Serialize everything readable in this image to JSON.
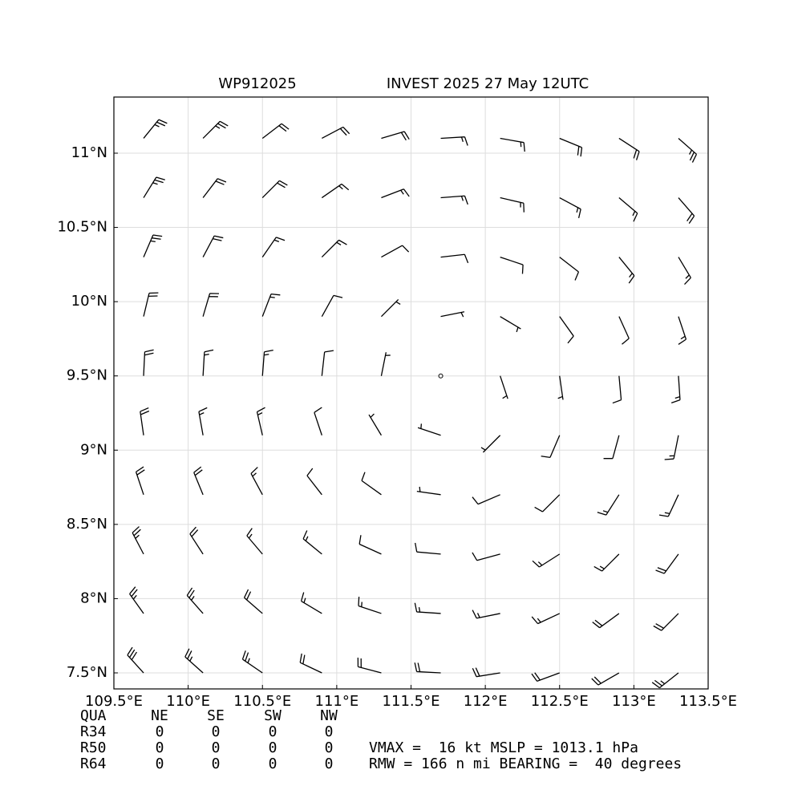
{
  "chart_data": {
    "type": "barbs",
    "title": "WP912025",
    "subtitle": "INVEST 2025 27 May 12UTC",
    "x": [
      109.7,
      110.1,
      110.5,
      110.9,
      111.3,
      111.7,
      112.1,
      112.5,
      112.9,
      113.3
    ],
    "y": [
      7.5,
      7.9,
      8.3,
      8.7,
      9.1,
      9.5,
      9.9,
      10.3,
      10.7,
      11.1
    ],
    "u": [
      [
        19,
        19,
        19,
        19,
        19,
        19,
        19,
        19,
        19,
        19
      ],
      [
        15,
        15,
        15,
        15,
        15,
        15,
        15,
        15,
        15,
        15
      ],
      [
        11,
        11,
        11,
        11,
        11,
        11,
        11,
        11,
        11,
        11
      ],
      [
        7,
        7,
        7,
        7,
        7,
        7,
        7,
        7,
        7,
        7
      ],
      [
        3,
        3,
        3,
        3,
        3,
        3,
        3,
        3,
        3,
        3
      ],
      [
        -1,
        -1,
        -1,
        -1,
        -1,
        -1,
        -1,
        -1,
        -1,
        -1
      ],
      [
        -5,
        -5,
        -5,
        -5,
        -5,
        -5,
        -5,
        -5,
        -5,
        -5
      ],
      [
        -9,
        -9,
        -9,
        -9,
        -9,
        -9,
        -9,
        -9,
        -9,
        -9
      ],
      [
        -13,
        -13,
        -13,
        -13,
        -13,
        -13,
        -13,
        -13,
        -13,
        -13
      ],
      [
        -17,
        -17,
        -17,
        -17,
        -17,
        -17,
        -17,
        -17,
        -17,
        -17
      ]
    ],
    "v": [
      [
        -21,
        -17,
        -13,
        -9,
        -5,
        -1,
        3,
        7,
        11,
        15
      ],
      [
        -21,
        -17,
        -13,
        -9,
        -5,
        -1,
        3,
        7,
        11,
        15
      ],
      [
        -21,
        -17,
        -13,
        -9,
        -5,
        -1,
        3,
        7,
        11,
        15
      ],
      [
        -21,
        -17,
        -13,
        -9,
        -5,
        -1,
        3,
        7,
        11,
        15
      ],
      [
        -21,
        -17,
        -13,
        -9,
        -5,
        -1,
        3,
        7,
        11,
        15
      ],
      [
        -21,
        -17,
        -13,
        -9,
        -5,
        -1,
        3,
        7,
        11,
        15
      ],
      [
        -21,
        -17,
        -13,
        -9,
        -5,
        -1,
        3,
        7,
        11,
        15
      ],
      [
        -21,
        -17,
        -13,
        -9,
        -5,
        -1,
        3,
        7,
        11,
        15
      ],
      [
        -21,
        -17,
        -13,
        -9,
        -5,
        -1,
        3,
        7,
        11,
        15
      ],
      [
        -21,
        -17,
        -13,
        -9,
        -5,
        -1,
        3,
        7,
        11,
        15
      ]
    ],
    "color": "#000000",
    "xlim": [
      109.5,
      113.5
    ],
    "ylim": [
      7.392,
      11.378
    ],
    "xticks": [
      {
        "value": 109.5,
        "label": "109.5°E"
      },
      {
        "value": 110,
        "label": "110°E"
      },
      {
        "value": 110.5,
        "label": "110.5°E"
      },
      {
        "value": 111,
        "label": "111°E"
      },
      {
        "value": 111.5,
        "label": "111.5°E"
      },
      {
        "value": 112,
        "label": "112°E"
      },
      {
        "value": 112.5,
        "label": "112.5°E"
      },
      {
        "value": 113,
        "label": "113°E"
      },
      {
        "value": 113.5,
        "label": "113.5°E"
      }
    ],
    "yticks": [
      {
        "value": 7.5,
        "label": "7.5°N"
      },
      {
        "value": 8,
        "label": "8°N"
      },
      {
        "value": 8.5,
        "label": "8.5°N"
      },
      {
        "value": 9,
        "label": "9°N"
      },
      {
        "value": 9.5,
        "label": "9.5°N"
      },
      {
        "value": 10,
        "label": "10°N"
      },
      {
        "value": 10.5,
        "label": "10.5°N"
      },
      {
        "value": 11,
        "label": "11°N"
      }
    ],
    "grid": true
  },
  "table": {
    "header": [
      "QUA",
      "NE",
      "SE",
      "SW",
      "NW"
    ],
    "rows": [
      [
        "R34",
        0,
        0,
        0,
        0
      ],
      [
        "R50",
        0,
        0,
        0,
        0
      ],
      [
        "R64",
        0,
        0,
        0,
        0
      ]
    ]
  },
  "stats": [
    "VMAX =  16 kt MSLP = 1013.1 hPa",
    "RMW = 166 n mi BEARING =  40 degrees"
  ]
}
